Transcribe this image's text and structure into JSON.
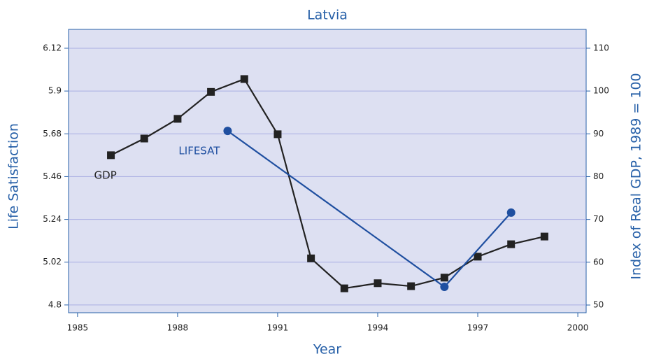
{
  "chart_data": {
    "type": "line",
    "title": "Latvia",
    "x_label": "Year",
    "y_label": "Life Satisfaction",
    "y2_label": "Index of Real GDP, 1989 = 100",
    "xlim": [
      1984.73,
      2000.25
    ],
    "xticks": [
      1985,
      1988,
      1991,
      1994,
      1997,
      2000
    ],
    "ylim": [
      4.76,
      6.217
    ],
    "yticks": [
      4.8,
      5.02,
      5.24,
      5.46,
      5.68,
      5.9,
      6.12
    ],
    "y2lim": [
      48.2,
      114.4
    ],
    "y2ticks": [
      50,
      60,
      70,
      80,
      90,
      100,
      110
    ],
    "grid": true,
    "series": [
      {
        "name": "GDP",
        "color": "#222222",
        "axis": "y2",
        "marker": "square",
        "x": [
          1986,
          1987,
          1988,
          1989,
          1990,
          1991,
          1992,
          1993,
          1994,
          1995,
          1996,
          1997,
          1998,
          1999
        ],
        "values": [
          85,
          88.9,
          93.5,
          99.8,
          102.8,
          89.9,
          60.9,
          53.9,
          55.1,
          54.4,
          56.4,
          61.3,
          64.2,
          66.0
        ]
      },
      {
        "name": "LIFESAT",
        "color": "#1f4fa0",
        "axis": "y",
        "marker": "circle",
        "x": [
          1989.5,
          1996,
          1998
        ],
        "values": [
          5.695,
          4.893,
          5.275
        ]
      }
    ]
  }
}
